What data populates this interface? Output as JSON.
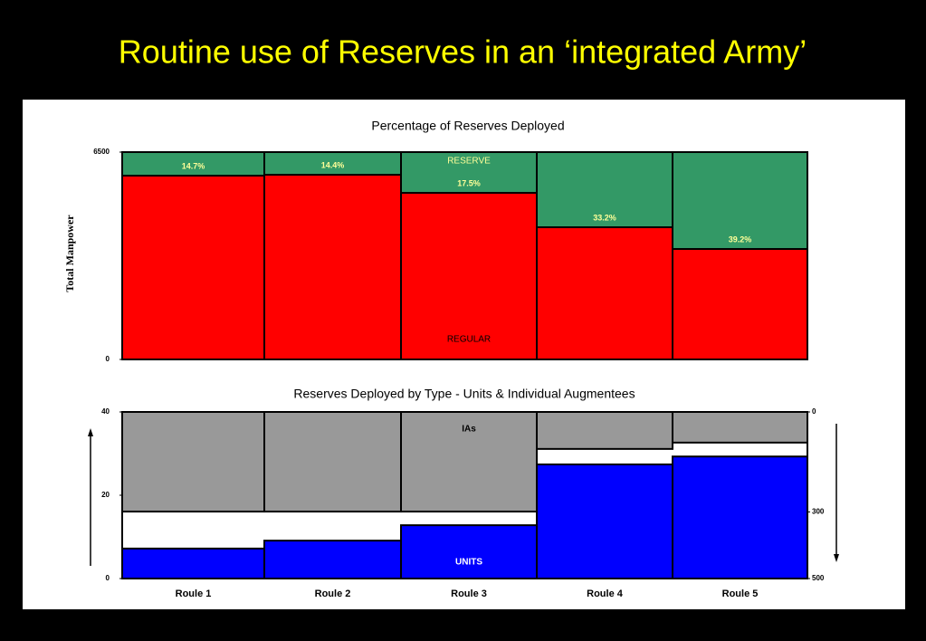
{
  "slide": {
    "title": "Routine use of Reserves in an ‘integrated Army’"
  },
  "chart_data": [
    {
      "type": "bar",
      "stacked": true,
      "title": "Percentage of Reserves Deployed",
      "ylabel": "Total Manpower",
      "categories": [
        null,
        null,
        null,
        null,
        null
      ],
      "series": [
        {
          "name": "REGULAR",
          "color": "#ff0000",
          "values": [
            5762,
            5790,
            5223,
            4144,
            3463
          ]
        },
        {
          "name": "RESERVE",
          "color": "#339966",
          "values": [
            738,
            710,
            1277,
            2356,
            3037
          ]
        }
      ],
      "annotations": [
        "14.7%",
        "14.4%",
        "17.5%",
        "33.2%",
        "39.2%"
      ],
      "ylim": [
        0,
        6500
      ],
      "yticks": [
        0,
        6500
      ]
    },
    {
      "type": "bar",
      "title": "Reserves Deployed by Type - Units & Individual Augmentees",
      "categories": [
        "Roule 1",
        "Roule 2",
        "Roule 3",
        "Roule 4",
        "Roule 5"
      ],
      "series": [
        {
          "name": "UNITS",
          "color": "#0000ff",
          "values": [
            7.2,
            9.1,
            12.8,
            27.4,
            29.3
          ]
        },
        {
          "name": "IAs",
          "color": "#999999",
          "axis": "y2",
          "values": [
            299,
            299,
            299,
            111,
            92
          ]
        }
      ],
      "ylim": [
        0,
        40
      ],
      "yticks": [
        0,
        20,
        40
      ],
      "y2lim": [
        500,
        0
      ],
      "y2ticks": [
        0,
        300,
        500
      ]
    }
  ]
}
